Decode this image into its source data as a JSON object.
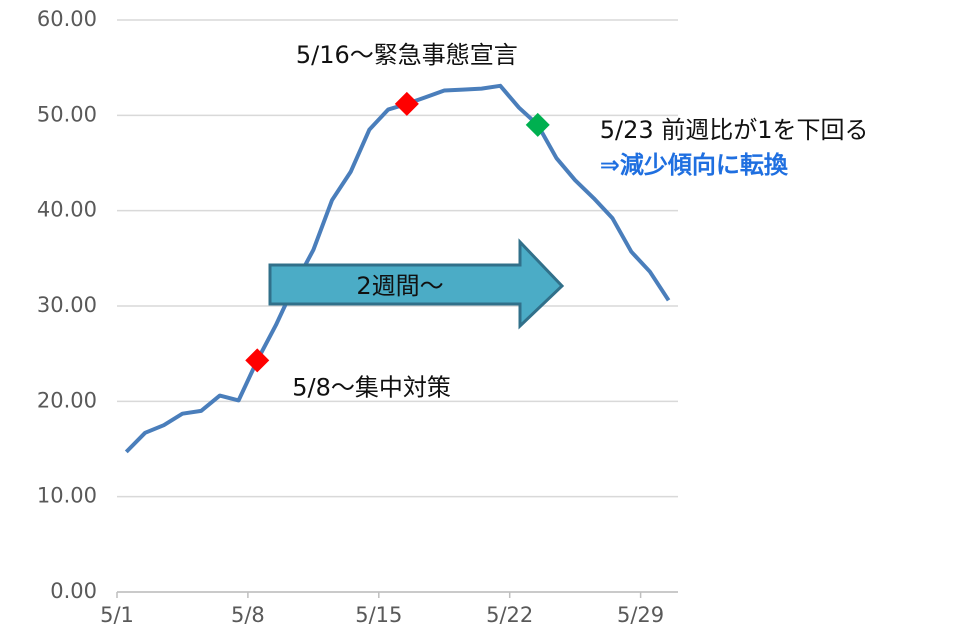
{
  "chart_data": {
    "type": "line",
    "categories": [
      "5/1",
      null,
      null,
      null,
      null,
      null,
      null,
      "5/8",
      null,
      null,
      null,
      null,
      null,
      null,
      "5/15",
      null,
      null,
      null,
      null,
      null,
      null,
      "5/22",
      null,
      null,
      null,
      null,
      null,
      null,
      "5/29",
      null
    ],
    "series": [
      {
        "color": "#4a7ebb",
        "values": [
          14.7,
          16.7,
          17.5,
          18.7,
          19.0,
          20.6,
          20.1,
          24.3,
          28.0,
          32.2,
          35.9,
          41.1,
          44.1,
          48.5,
          50.6,
          51.2,
          51.9,
          52.6,
          52.7,
          52.8,
          53.1,
          50.8,
          49.0,
          45.5,
          43.2,
          41.3,
          39.2,
          35.7,
          33.6,
          30.6
        ]
      }
    ],
    "ylim": [
      0,
      60
    ],
    "yticks": [
      {
        "value": 0,
        "label": "0.00"
      },
      {
        "value": 10,
        "label": "10.00"
      },
      {
        "value": 20,
        "label": "20.00"
      },
      {
        "value": 30,
        "label": "30.00"
      },
      {
        "value": 40,
        "label": "40.00"
      },
      {
        "value": 50,
        "label": "50.00"
      },
      {
        "value": 60,
        "label": "60.00"
      }
    ],
    "grid": true,
    "markers": [
      {
        "index": 7,
        "color": "#ff0000",
        "text": "5/8～集中対策"
      },
      {
        "index": 15,
        "color": "#ff0000",
        "text": "5/16～緊急事態宣言"
      },
      {
        "index": 22,
        "color": "#00b050",
        "text": "5/23  前週比が1を下回る",
        "subtext": "⇒減少傾向に転換",
        "subcolor": "#1f6fe0"
      }
    ],
    "arrow_label": "2週間～"
  }
}
